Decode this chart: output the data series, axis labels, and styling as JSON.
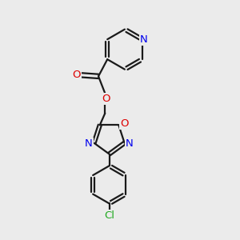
{
  "background_color": "#ebebeb",
  "bond_color": "#1a1a1a",
  "atom_colors": {
    "N": "#0000ee",
    "O": "#dd0000",
    "Cl": "#22aa22",
    "C": "#1a1a1a"
  },
  "figsize": [
    3.0,
    3.0
  ],
  "dpi": 100
}
